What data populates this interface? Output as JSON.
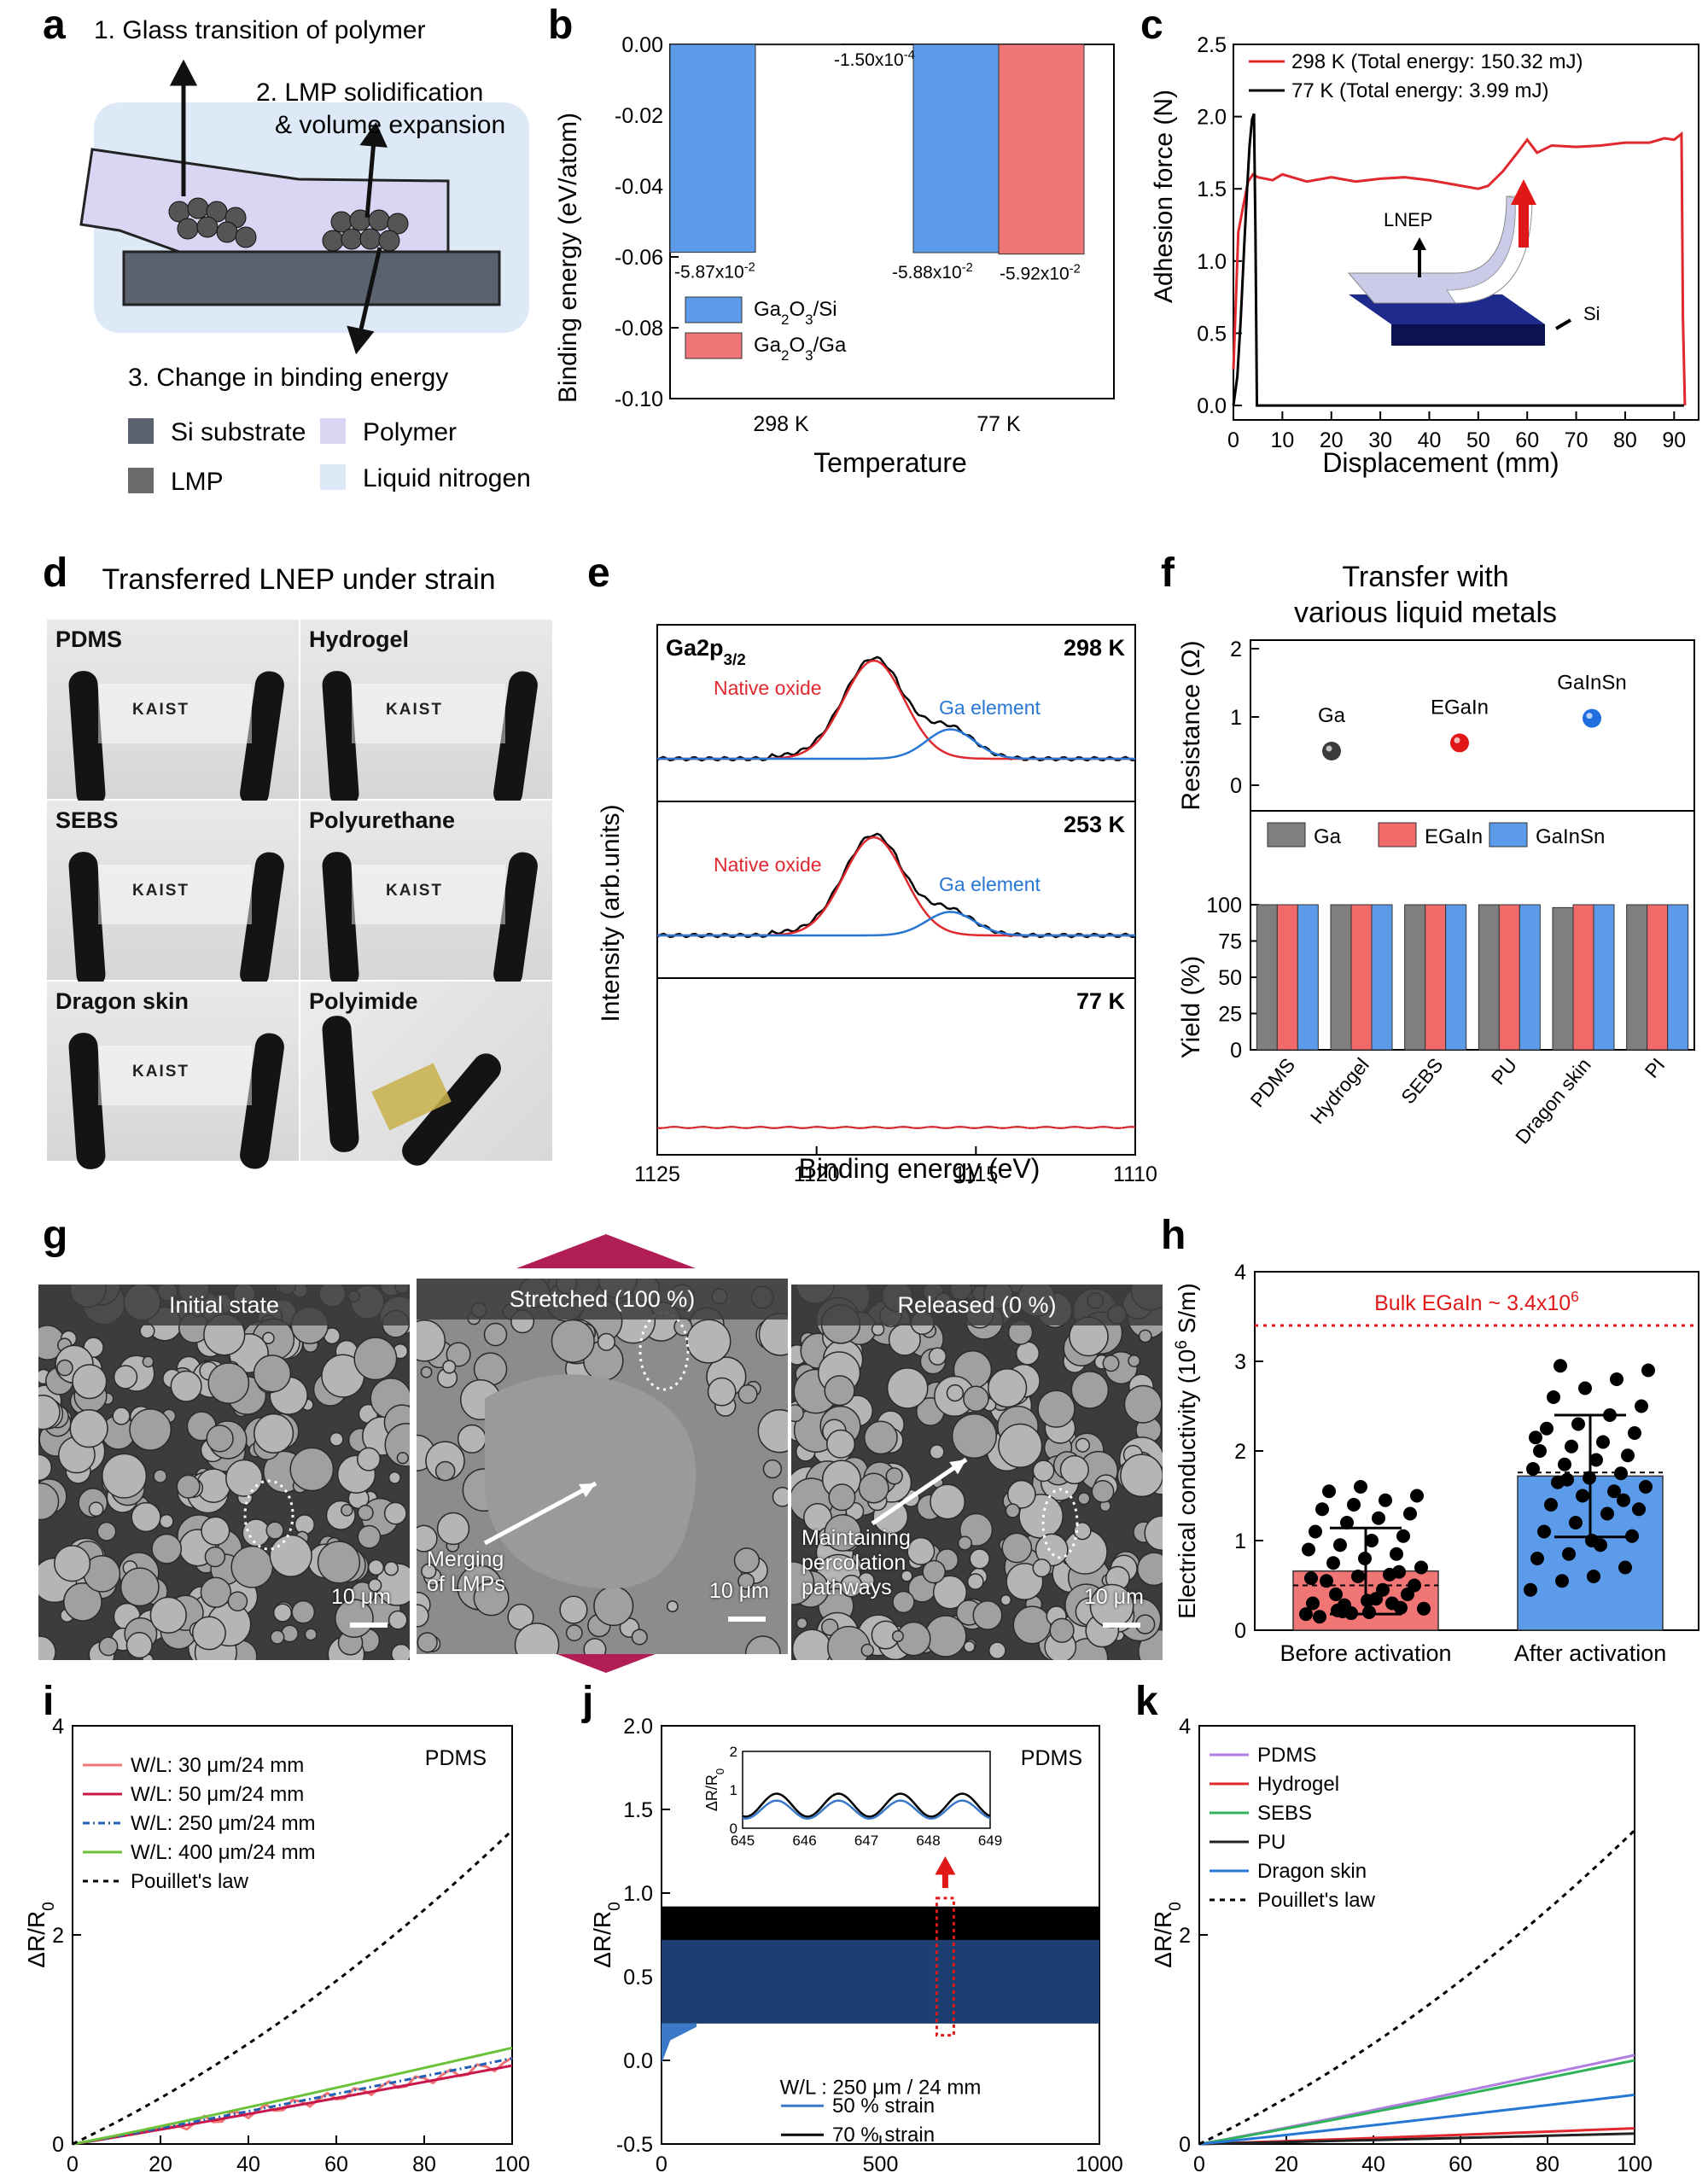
{
  "panel_labels": {
    "a": "a",
    "b": "b",
    "c": "c",
    "d": "d",
    "e": "e",
    "f": "f",
    "g": "g",
    "h": "h",
    "i": "i",
    "j": "j",
    "k": "k"
  },
  "panel_a": {
    "step1": "1. Glass transition  of polymer",
    "step2_line1": "2. LMP solidification",
    "step2_line2": "& volume expansion",
    "step3": "3. Change in binding energy",
    "legend": [
      "Si substrate",
      "Polymer",
      "LMP",
      "Liquid nitrogen"
    ],
    "colors": {
      "si": "#5a6270",
      "polymer": "#d9d6f3",
      "lmp": "#6a6a6a",
      "ln2": "#dde9f6"
    }
  },
  "panel_b": {
    "chart_data": {
      "type": "bar",
      "categories": [
        "298 K",
        "77 K"
      ],
      "series": [
        {
          "name": "Ga2O3/Si",
          "values": [
            -0.0587,
            -0.0588
          ],
          "color": "#5b9bea"
        },
        {
          "name": "Ga2O3/Ga",
          "values": [
            -0.00015,
            -0.0592
          ],
          "color": "#f07575"
        }
      ],
      "data_labels": [
        "-1.50x10",
        "-4",
        "-5.87x10",
        "-2",
        "-5.88x10",
        "-2",
        "-5.92x10",
        "-2"
      ],
      "xlabel": "Temperature",
      "ylabel": "Binding energy (eV/atom)",
      "ylim": [
        -0.1,
        0.0
      ],
      "yticks": [
        "0.00",
        "-0.02",
        "-0.04",
        "-0.06",
        "-0.08",
        "-0.10"
      ],
      "legend_labels": [
        "Ga",
        "2",
        "O",
        "3",
        "/Si",
        "Ga",
        "2",
        "O",
        "3",
        "/Ga"
      ],
      "legend": "bottom-left"
    }
  },
  "panel_c": {
    "chart_data": {
      "type": "line",
      "xlabel": "Displacement (mm)",
      "ylabel": "Adhesion force (N)",
      "xlim": [
        0,
        95
      ],
      "ylim": [
        -0.1,
        2.5
      ],
      "xticks": [
        "0",
        "10",
        "20",
        "30",
        "40",
        "50",
        "60",
        "70",
        "80",
        "90"
      ],
      "yticks": [
        "0.0",
        "0.5",
        "1.0",
        "1.5",
        "2.0",
        "2.5"
      ],
      "series": [
        {
          "name": "298 K (Total energy: 150.32 mJ)",
          "color": "#e0282f",
          "x": [
            0,
            1,
            2,
            3,
            4,
            5,
            8,
            10,
            15,
            20,
            25,
            30,
            35,
            40,
            45,
            50,
            52,
            55,
            58,
            60,
            62,
            65,
            70,
            75,
            80,
            85,
            88,
            90,
            91.5,
            91.6,
            91.8,
            92.2
          ],
          "y": [
            0.25,
            1.2,
            1.38,
            1.55,
            1.6,
            1.58,
            1.56,
            1.6,
            1.55,
            1.58,
            1.55,
            1.57,
            1.58,
            1.56,
            1.53,
            1.5,
            1.52,
            1.62,
            1.75,
            1.84,
            1.75,
            1.8,
            1.79,
            1.8,
            1.82,
            1.82,
            1.85,
            1.84,
            1.88,
            1.5,
            0.6,
            0.0
          ]
        },
        {
          "name": "77 K (Total energy: 3.99 mJ)",
          "color": "#000000",
          "x": [
            0,
            0.8,
            1.5,
            2.2,
            2.8,
            3.3,
            3.8,
            4.2,
            4.5,
            4.8,
            5.5,
            10,
            20,
            40,
            60,
            80,
            92
          ],
          "y": [
            0.0,
            0.2,
            0.6,
            1.1,
            1.5,
            1.8,
            1.98,
            2.02,
            1.2,
            0.0,
            0.0,
            0.0,
            0.0,
            0.0,
            0.0,
            0.0,
            0.0
          ]
        }
      ],
      "legend": "top-right",
      "inset_labels": [
        "LNEP",
        "Si"
      ]
    }
  },
  "panel_d": {
    "title": "Transferred LNEP under strain",
    "samples": [
      "PDMS",
      "Hydrogel",
      "SEBS",
      "Polyurethane",
      "Dragon skin",
      "Polyimide"
    ],
    "stamp": "KAIST"
  },
  "panel_e": {
    "chart_data": {
      "type": "line",
      "xlabel": "Binding energy (eV)",
      "ylabel": "Intensity (arb.units)",
      "xlim": [
        1125,
        1110
      ],
      "xticks": [
        "1125",
        "1120",
        "1115",
        "1110"
      ],
      "peak_title": "Ga2p",
      "peak_sub": "3/2",
      "subplots": [
        {
          "temp": "298 K",
          "oxide_center": 1118.2,
          "oxide_height": 1.0,
          "elem_center": 1115.8,
          "elem_height": 0.3,
          "labels": [
            "Native oxide",
            "Ga element"
          ]
        },
        {
          "temp": "253 K",
          "oxide_center": 1118.2,
          "oxide_height": 1.0,
          "elem_center": 1115.8,
          "elem_height": 0.24,
          "labels": [
            "Native oxide",
            "Ga element"
          ]
        },
        {
          "temp": "77 K",
          "flat": true
        }
      ],
      "colors": {
        "data": "#000000",
        "oxide": "#e0282f",
        "element": "#2876d4"
      }
    }
  },
  "panel_f": {
    "title_line1": "Transfer with",
    "title_line2": "various liquid metals",
    "chart_data": {
      "type": "bar",
      "resistance": {
        "ylabel": "Resistance (Ω)",
        "yticks": [
          "2",
          "1",
          "0"
        ],
        "points": [
          {
            "name": "Ga",
            "value": 0.5,
            "color": "#3b3b3b"
          },
          {
            "name": "EGaIn",
            "value": 0.62,
            "color": "#e01818"
          },
          {
            "name": "GaInSn",
            "value": 0.98,
            "color": "#1f6fe0"
          }
        ]
      },
      "categories": [
        "PDMS",
        "Hydrogel",
        "SEBS",
        "PU",
        "Dragon skin",
        "PI"
      ],
      "series": [
        {
          "name": "Ga",
          "values": [
            100,
            100,
            100,
            100,
            98,
            100
          ],
          "color": "#7f7f7f"
        },
        {
          "name": "EGaIn",
          "values": [
            100,
            100,
            100,
            100,
            100,
            100
          ],
          "color": "#f06a6a"
        },
        {
          "name": "GaInSn",
          "values": [
            100,
            100,
            100,
            100,
            100,
            100
          ],
          "color": "#5b9bea"
        }
      ],
      "ylabel": "Yield (%)",
      "ylim": [
        0,
        100
      ],
      "yticks": [
        "100",
        "75",
        "50",
        "25",
        "0"
      ],
      "legend": "top"
    }
  },
  "panel_g": {
    "images": [
      {
        "title": "Initial state",
        "scale": "10 μm"
      },
      {
        "title": "Stretched (100 %)",
        "scale": "10 μm",
        "note_line1": "Merging",
        "note_line2": "of LMPs"
      },
      {
        "title": "Released (0 %)",
        "scale": "10 μm",
        "note_line1": "Maintaining",
        "note_line2": "percolation",
        "note_line3": "pathways"
      }
    ]
  },
  "panel_h": {
    "chart_data": {
      "type": "bar",
      "categories": [
        "Before activation",
        "After activation"
      ],
      "values": [
        0.66,
        1.72
      ],
      "errors": [
        0.48,
        0.68
      ],
      "means_dashed": [
        0.5,
        1.76
      ],
      "colors": [
        "#f07575",
        "#5b9bea"
      ],
      "ylabel": "Electrical conductivity (10",
      "ylabel_sup": "6",
      "ylabel_end": " S/m)",
      "ylim": [
        0,
        4
      ],
      "yticks": [
        "0",
        "1",
        "2",
        "3",
        "4"
      ],
      "bulk_label": "Bulk EGaIn ~ 3.4x10",
      "bulk_sup": "6",
      "bulk_value": 3.4,
      "points_before": [
        0.18,
        0.22,
        0.2,
        0.25,
        0.3,
        0.28,
        0.35,
        0.4,
        0.15,
        0.19,
        0.45,
        0.5,
        0.55,
        0.6,
        0.62,
        0.7,
        0.75,
        0.8,
        0.85,
        0.9,
        0.95,
        1.0,
        1.05,
        1.1,
        1.2,
        1.25,
        1.3,
        1.35,
        1.4,
        1.45,
        1.5,
        1.55,
        1.6,
        0.3,
        0.24,
        0.4,
        0.33,
        0.65,
        0.58,
        0.21
      ],
      "points_after": [
        0.45,
        0.55,
        0.6,
        0.7,
        0.8,
        0.85,
        0.95,
        1.05,
        1.1,
        1.2,
        1.3,
        1.35,
        1.4,
        1.5,
        1.55,
        1.6,
        1.65,
        1.7,
        1.75,
        1.8,
        1.85,
        1.9,
        1.95,
        2.0,
        2.05,
        2.1,
        2.2,
        2.25,
        2.3,
        2.4,
        2.5,
        2.6,
        2.7,
        2.8,
        2.9,
        2.95,
        1.0,
        1.45,
        2.15,
        1.68
      ]
    }
  },
  "panel_i": {
    "chart_data": {
      "type": "line",
      "xlabel": "Strain (%)",
      "ylabel": "ΔR/R",
      "ylabel_sub": "0",
      "xlim": [
        0,
        100
      ],
      "ylim": [
        0,
        4
      ],
      "xticks": [
        "0",
        "20",
        "40",
        "60",
        "80",
        "100"
      ],
      "yticks": [
        "0",
        "2",
        "4"
      ],
      "annotation": "PDMS",
      "series": [
        {
          "name": "W/L: 30 μm/24 mm",
          "color": "#f07575",
          "dash": "",
          "end": 0.78,
          "wiggle": true
        },
        {
          "name": "W/L: 50 μm/24 mm",
          "color": "#c8174a",
          "dash": "",
          "end": 0.75,
          "wiggle": false
        },
        {
          "name": "W/L: 250 μm/24 mm",
          "color": "#1f5fb4",
          "dash": "8,4,2,4",
          "end": 0.82,
          "wiggle": false
        },
        {
          "name": "W/L: 400 μm/24 mm",
          "color": "#6cc13a",
          "dash": "",
          "end": 0.92,
          "wiggle": false
        },
        {
          "name": "Pouillet's law",
          "color": "#000000",
          "dash": "6,6",
          "end": 3.0,
          "pouillet": true
        }
      ],
      "legend": "top-left"
    }
  },
  "panel_j": {
    "chart_data": {
      "type": "area",
      "xlabel": "Cycles",
      "ylabel": "ΔR/R",
      "ylabel_sub": "0",
      "xlim": [
        0,
        1000
      ],
      "ylim": [
        -0.5,
        2.0
      ],
      "xticks": [
        "0",
        "500",
        "1000"
      ],
      "yticks": [
        "-0.5",
        "0.0",
        "0.5",
        "1.0",
        "1.5",
        "2.0"
      ],
      "annotation": "PDMS",
      "wl_label": "W/L : 250 μm / 24 mm",
      "series": [
        {
          "name": "50 % strain",
          "color": "#3a78c8",
          "min": 0.22,
          "max": 0.72
        },
        {
          "name": "70 % strain",
          "color": "#000000",
          "min": 0.28,
          "max": 0.92
        }
      ],
      "inset": {
        "xlim": [
          645,
          649
        ],
        "xticks": [
          "645",
          "646",
          "647",
          "648",
          "649"
        ],
        "yticks": [
          "0",
          "1",
          "2"
        ],
        "ylabel": "ΔR/R",
        "ylabel_sub": "0"
      }
    }
  },
  "panel_k": {
    "chart_data": {
      "type": "line",
      "xlabel": "Strain (%)",
      "ylabel": "ΔR/R",
      "ylabel_sub": "0",
      "xlim": [
        0,
        100
      ],
      "ylim": [
        0,
        4
      ],
      "xticks": [
        "0",
        "20",
        "40",
        "60",
        "80",
        "100"
      ],
      "yticks": [
        "0",
        "2",
        "4"
      ],
      "series": [
        {
          "name": "PDMS",
          "color": "#b07ee0",
          "dash": "",
          "end": 0.85
        },
        {
          "name": "Hydrogel",
          "color": "#e0282f",
          "dash": "",
          "end": 0.15
        },
        {
          "name": "SEBS",
          "color": "#2fb35a",
          "dash": "",
          "end": 0.8
        },
        {
          "name": "PU",
          "color": "#222222",
          "dash": "",
          "end": 0.1
        },
        {
          "name": "Dragon skin",
          "color": "#2876d4",
          "dash": "",
          "end": 0.47
        },
        {
          "name": "Pouillet's law",
          "color": "#000000",
          "dash": "6,6",
          "end": 3.0
        }
      ],
      "legend": "top-left"
    }
  }
}
